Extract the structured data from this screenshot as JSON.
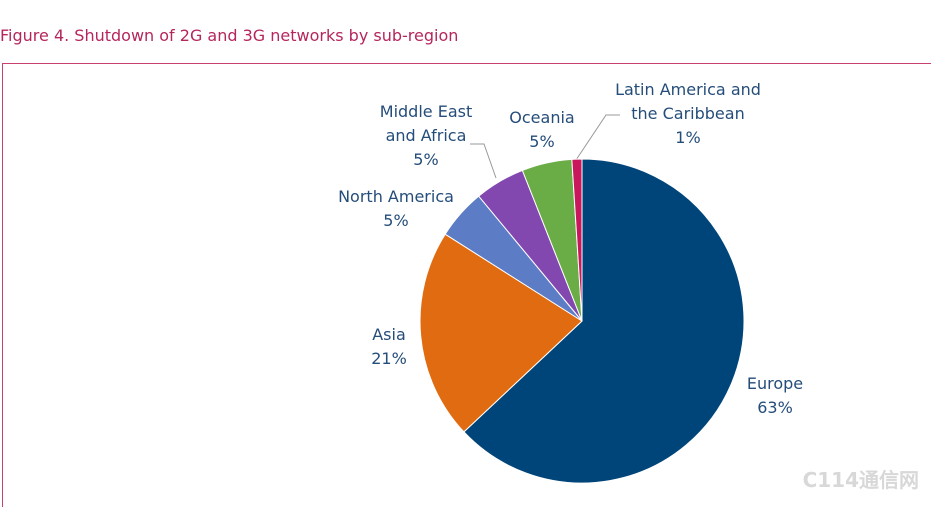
{
  "chart_data": {
    "type": "pie",
    "title": "Figure 4. Shutdown of 2G and 3G networks by sub-region",
    "categories": [
      "Europe",
      "Asia",
      "North America",
      "Middle East and Africa",
      "Oceania",
      "Latin America and the Caribbean"
    ],
    "values": [
      63,
      21,
      5,
      5,
      5,
      1
    ],
    "value_labels": [
      "63%",
      "21%",
      "5%",
      "5%",
      "5%",
      "1%"
    ],
    "colors": [
      "#00457a",
      "#e16b10",
      "#5c7cc6",
      "#8248b0",
      "#6aac46",
      "#c9175b"
    ],
    "watermark": "C114通信网"
  }
}
